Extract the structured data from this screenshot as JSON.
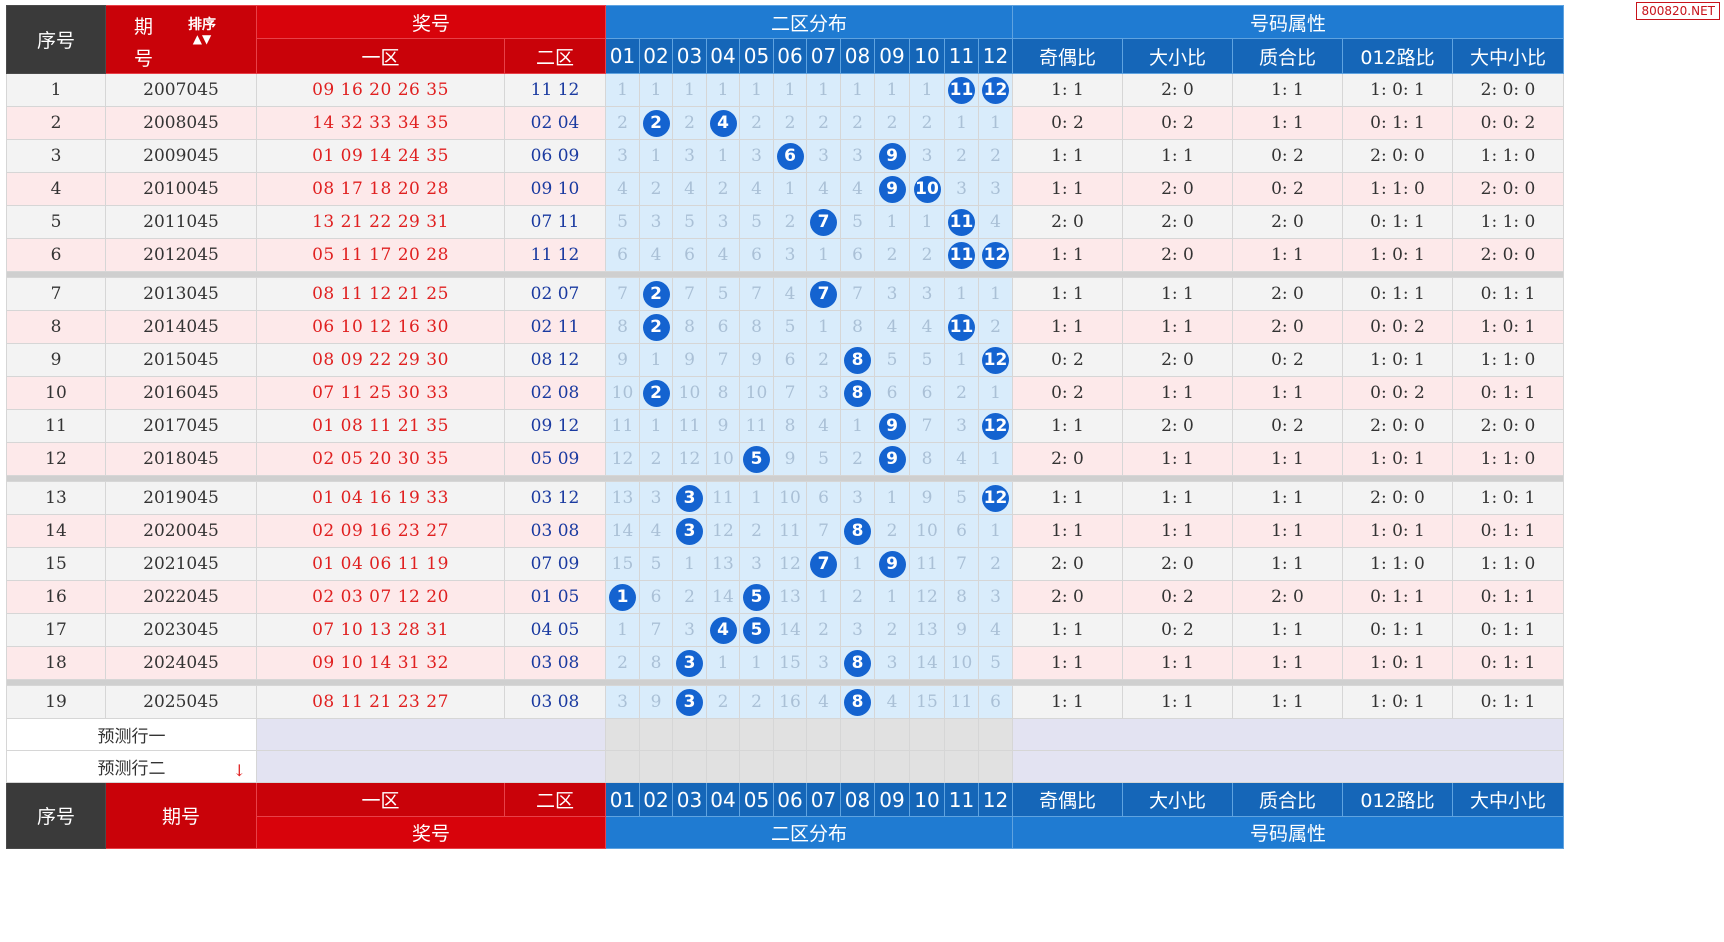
{
  "watermark": "800820.NET",
  "header": {
    "seq": "序号",
    "issue_top": "期",
    "issue_bottom": "号",
    "sort_label": "排序",
    "prize": "奖号",
    "zone1": "一区",
    "zone2": "二区",
    "dist": "二区分布",
    "attr": "号码属性",
    "issue_full": "期号",
    "dist_numbers": [
      "01",
      "02",
      "03",
      "04",
      "05",
      "06",
      "07",
      "08",
      "09",
      "10",
      "11",
      "12"
    ],
    "attr_cols": [
      "奇偶比",
      "大小比",
      "质合比",
      "012路比",
      "大中小比"
    ]
  },
  "rows": [
    {
      "seq": "1",
      "issue": "2007045",
      "z1": "09 16 20 26 35",
      "z2": "11 12",
      "dist": [
        "1",
        "1",
        "1",
        "1",
        "1",
        "1",
        "1",
        "1",
        "1",
        "1",
        "11",
        "12"
      ],
      "attrs": [
        "1: 1",
        "2: 0",
        "1: 1",
        "1: 0: 1",
        "2: 0: 0"
      ]
    },
    {
      "seq": "2",
      "issue": "2008045",
      "z1": "14 32 33 34 35",
      "z2": "02 04",
      "dist": [
        "2",
        "2",
        "2",
        "4",
        "2",
        "2",
        "2",
        "2",
        "2",
        "2",
        "1",
        "1"
      ],
      "attrs": [
        "0: 2",
        "0: 2",
        "1: 1",
        "0: 1: 1",
        "0: 0: 2"
      ]
    },
    {
      "seq": "3",
      "issue": "2009045",
      "z1": "01 09 14 24 35",
      "z2": "06 09",
      "dist": [
        "3",
        "1",
        "3",
        "1",
        "3",
        "6",
        "3",
        "3",
        "9",
        "3",
        "2",
        "2"
      ],
      "attrs": [
        "1: 1",
        "1: 1",
        "0: 2",
        "2: 0: 0",
        "1: 1: 0"
      ]
    },
    {
      "seq": "4",
      "issue": "2010045",
      "z1": "08 17 18 20 28",
      "z2": "09 10",
      "dist": [
        "4",
        "2",
        "4",
        "2",
        "4",
        "1",
        "4",
        "4",
        "9",
        "10",
        "3",
        "3"
      ],
      "attrs": [
        "1: 1",
        "2: 0",
        "0: 2",
        "1: 1: 0",
        "2: 0: 0"
      ]
    },
    {
      "seq": "5",
      "issue": "2011045",
      "z1": "13 21 22 29 31",
      "z2": "07 11",
      "dist": [
        "5",
        "3",
        "5",
        "3",
        "5",
        "2",
        "7",
        "5",
        "1",
        "1",
        "11",
        "4"
      ],
      "attrs": [
        "2: 0",
        "2: 0",
        "2: 0",
        "0: 1: 1",
        "1: 1: 0"
      ]
    },
    {
      "seq": "6",
      "issue": "2012045",
      "z1": "05 11 17 20 28",
      "z2": "11 12",
      "dist": [
        "6",
        "4",
        "6",
        "4",
        "6",
        "3",
        "1",
        "6",
        "2",
        "2",
        "11",
        "12"
      ],
      "attrs": [
        "1: 1",
        "2: 0",
        "1: 1",
        "1: 0: 1",
        "2: 0: 0"
      ]
    },
    {
      "seq": "7",
      "issue": "2013045",
      "z1": "08 11 12 21 25",
      "z2": "02 07",
      "dist": [
        "7",
        "2",
        "7",
        "5",
        "7",
        "4",
        "7",
        "7",
        "3",
        "3",
        "1",
        "1"
      ],
      "attrs": [
        "1: 1",
        "1: 1",
        "2: 0",
        "0: 1: 1",
        "0: 1: 1"
      ]
    },
    {
      "seq": "8",
      "issue": "2014045",
      "z1": "06 10 12 16 30",
      "z2": "02 11",
      "dist": [
        "8",
        "2",
        "8",
        "6",
        "8",
        "5",
        "1",
        "8",
        "4",
        "4",
        "11",
        "2"
      ],
      "attrs": [
        "1: 1",
        "1: 1",
        "2: 0",
        "0: 0: 2",
        "1: 0: 1"
      ]
    },
    {
      "seq": "9",
      "issue": "2015045",
      "z1": "08 09 22 29 30",
      "z2": "08 12",
      "dist": [
        "9",
        "1",
        "9",
        "7",
        "9",
        "6",
        "2",
        "8",
        "5",
        "5",
        "1",
        "12"
      ],
      "attrs": [
        "0: 2",
        "2: 0",
        "0: 2",
        "1: 0: 1",
        "1: 1: 0"
      ]
    },
    {
      "seq": "10",
      "issue": "2016045",
      "z1": "07 11 25 30 33",
      "z2": "02 08",
      "dist": [
        "10",
        "2",
        "10",
        "8",
        "10",
        "7",
        "3",
        "8",
        "6",
        "6",
        "2",
        "1"
      ],
      "attrs": [
        "0: 2",
        "1: 1",
        "1: 1",
        "0: 0: 2",
        "0: 1: 1"
      ]
    },
    {
      "seq": "11",
      "issue": "2017045",
      "z1": "01 08 11 21 35",
      "z2": "09 12",
      "dist": [
        "11",
        "1",
        "11",
        "9",
        "11",
        "8",
        "4",
        "1",
        "9",
        "7",
        "3",
        "12"
      ],
      "attrs": [
        "1: 1",
        "2: 0",
        "0: 2",
        "2: 0: 0",
        "2: 0: 0"
      ]
    },
    {
      "seq": "12",
      "issue": "2018045",
      "z1": "02 05 20 30 35",
      "z2": "05 09",
      "dist": [
        "12",
        "2",
        "12",
        "10",
        "5",
        "9",
        "5",
        "2",
        "9",
        "8",
        "4",
        "1"
      ],
      "attrs": [
        "2: 0",
        "1: 1",
        "1: 1",
        "1: 0: 1",
        "1: 1: 0"
      ]
    },
    {
      "seq": "13",
      "issue": "2019045",
      "z1": "01 04 16 19 33",
      "z2": "03 12",
      "dist": [
        "13",
        "3",
        "3",
        "11",
        "1",
        "10",
        "6",
        "3",
        "1",
        "9",
        "5",
        "12"
      ],
      "attrs": [
        "1: 1",
        "1: 1",
        "1: 1",
        "2: 0: 0",
        "1: 0: 1"
      ]
    },
    {
      "seq": "14",
      "issue": "2020045",
      "z1": "02 09 16 23 27",
      "z2": "03 08",
      "dist": [
        "14",
        "4",
        "3",
        "12",
        "2",
        "11",
        "7",
        "8",
        "2",
        "10",
        "6",
        "1"
      ],
      "attrs": [
        "1: 1",
        "1: 1",
        "1: 1",
        "1: 0: 1",
        "0: 1: 1"
      ]
    },
    {
      "seq": "15",
      "issue": "2021045",
      "z1": "01 04 06 11 19",
      "z2": "07 09",
      "dist": [
        "15",
        "5",
        "1",
        "13",
        "3",
        "12",
        "7",
        "1",
        "9",
        "11",
        "7",
        "2"
      ],
      "attrs": [
        "2: 0",
        "2: 0",
        "1: 1",
        "1: 1: 0",
        "1: 1: 0"
      ]
    },
    {
      "seq": "16",
      "issue": "2022045",
      "z1": "02 03 07 12 20",
      "z2": "01 05",
      "dist": [
        "1",
        "6",
        "2",
        "14",
        "5",
        "13",
        "1",
        "2",
        "1",
        "12",
        "8",
        "3"
      ],
      "attrs": [
        "2: 0",
        "0: 2",
        "2: 0",
        "0: 1: 1",
        "0: 1: 1"
      ]
    },
    {
      "seq": "17",
      "issue": "2023045",
      "z1": "07 10 13 28 31",
      "z2": "04 05",
      "dist": [
        "1",
        "7",
        "3",
        "4",
        "5",
        "14",
        "2",
        "3",
        "2",
        "13",
        "9",
        "4"
      ],
      "attrs": [
        "1: 1",
        "0: 2",
        "1: 1",
        "0: 1: 1",
        "0: 1: 1"
      ]
    },
    {
      "seq": "18",
      "issue": "2024045",
      "z1": "09 10 14 31 32",
      "z2": "03 08",
      "dist": [
        "2",
        "8",
        "3",
        "1",
        "1",
        "15",
        "3",
        "8",
        "3",
        "14",
        "10",
        "5"
      ],
      "attrs": [
        "1: 1",
        "1: 1",
        "1: 1",
        "1: 0: 1",
        "0: 1: 1"
      ]
    },
    {
      "seq": "19",
      "issue": "2025045",
      "z1": "08 11 21 23 27",
      "z2": "03 08",
      "dist": [
        "3",
        "9",
        "3",
        "2",
        "2",
        "16",
        "4",
        "8",
        "4",
        "15",
        "11",
        "6"
      ],
      "attrs": [
        "1: 1",
        "1: 1",
        "1: 1",
        "1: 0: 1",
        "0: 1: 1"
      ]
    }
  ],
  "predict": {
    "row1": "预测行一",
    "row2": "预测行二"
  }
}
